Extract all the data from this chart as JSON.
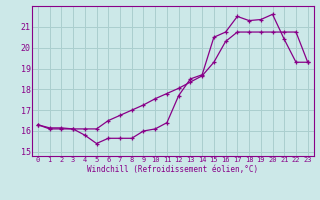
{
  "xlabel": "Windchill (Refroidissement éolien,°C)",
  "bg_color": "#cce8e8",
  "grid_color": "#aacece",
  "line_color": "#880088",
  "xlim": [
    -0.5,
    23.5
  ],
  "ylim": [
    14.8,
    22.0
  ],
  "yticks": [
    15,
    16,
    17,
    18,
    19,
    20,
    21
  ],
  "xticks": [
    0,
    1,
    2,
    3,
    4,
    5,
    6,
    7,
    8,
    9,
    10,
    11,
    12,
    13,
    14,
    15,
    16,
    17,
    18,
    19,
    20,
    21,
    22,
    23
  ],
  "line1_x": [
    0,
    1,
    2,
    3,
    4,
    5,
    6,
    7,
    8,
    9,
    10,
    11,
    12,
    13,
    14,
    15,
    16,
    17,
    18,
    19,
    20,
    21,
    22,
    23
  ],
  "line1_y": [
    16.3,
    16.1,
    16.1,
    16.1,
    15.8,
    15.4,
    15.65,
    15.65,
    15.65,
    16.0,
    16.1,
    16.4,
    17.7,
    18.5,
    18.7,
    20.5,
    20.75,
    21.5,
    21.3,
    21.35,
    21.6,
    20.4,
    19.3,
    19.3
  ],
  "line2_x": [
    0,
    1,
    2,
    3,
    4,
    5,
    6,
    7,
    8,
    9,
    10,
    11,
    12,
    13,
    14,
    15,
    16,
    17,
    18,
    19,
    20,
    21,
    22,
    23
  ],
  "line2_y": [
    16.3,
    16.15,
    16.15,
    16.1,
    16.1,
    16.1,
    16.5,
    16.75,
    17.0,
    17.25,
    17.55,
    17.8,
    18.05,
    18.35,
    18.65,
    19.3,
    20.3,
    20.75,
    20.75,
    20.75,
    20.75,
    20.75,
    20.75,
    19.3
  ]
}
